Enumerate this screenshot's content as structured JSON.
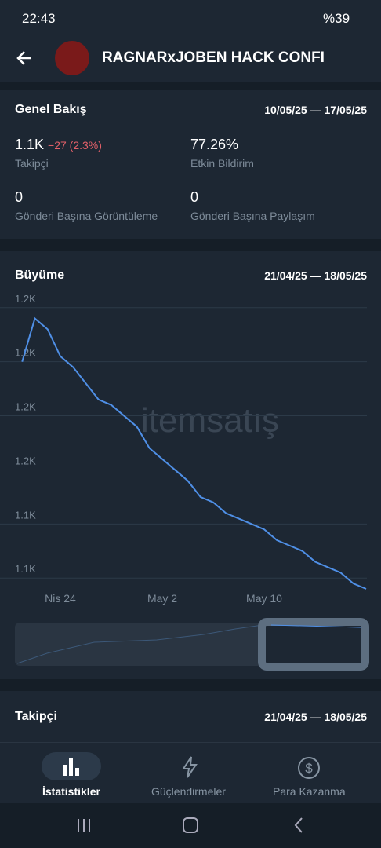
{
  "status_bar": {
    "time": "22:43",
    "battery": "%39"
  },
  "header": {
    "title": "RAGNARxJOBEN HACK CONFI"
  },
  "overview": {
    "title": "Genel Bakış",
    "date_range": "10/05/25 — 17/05/25",
    "stats": [
      {
        "value": "1.1K",
        "change": "−27 (2.3%)",
        "label": "Takipçi"
      },
      {
        "value": "77.26%",
        "label": "Etkin Bildirim"
      },
      {
        "value": "0",
        "label": "Gönderi Başına Görüntüleme"
      },
      {
        "value": "0",
        "label": "Gönderi Başına Paylaşım"
      }
    ]
  },
  "growth": {
    "title": "Büyüme",
    "date_range": "21/04/25 — 18/05/25",
    "watermark": "itemsatış"
  },
  "chart_data": {
    "type": "line",
    "categories": [
      null,
      null,
      null,
      "Nis 24",
      null,
      null,
      null,
      null,
      null,
      null,
      null,
      "May 2",
      null,
      null,
      null,
      null,
      null,
      null,
      null,
      "May 10",
      null,
      null,
      null,
      null,
      null,
      null,
      null,
      null
    ],
    "series": [
      {
        "name": "Takipçi",
        "color": "#4f8fe6",
        "values": [
          1170,
          1178,
          1176,
          1171,
          1169,
          1166,
          1163,
          1162,
          1160,
          1158,
          1154,
          1152,
          1150,
          1148,
          1145,
          1144,
          1142,
          1141,
          1140,
          1139,
          1137,
          1136,
          1135,
          1133,
          1132,
          1131,
          1129,
          1128
        ]
      }
    ],
    "ylim": [
      1128,
      1182
    ],
    "yticks": [
      {
        "value": 1130,
        "label": "1.1K"
      },
      {
        "value": 1140,
        "label": "1.1K"
      },
      {
        "value": 1150,
        "label": "1.2K"
      },
      {
        "value": 1160,
        "label": "1.2K"
      },
      {
        "value": 1170,
        "label": "1.2K"
      },
      {
        "value": 1180,
        "label": "1.2K"
      }
    ],
    "grid": true
  },
  "followers": {
    "title": "Takipçi",
    "date_range": "21/04/25 — 18/05/25"
  },
  "nav": {
    "items": [
      "İstatistikler",
      "Güçlendirmeler",
      "Para Kazanma"
    ]
  }
}
